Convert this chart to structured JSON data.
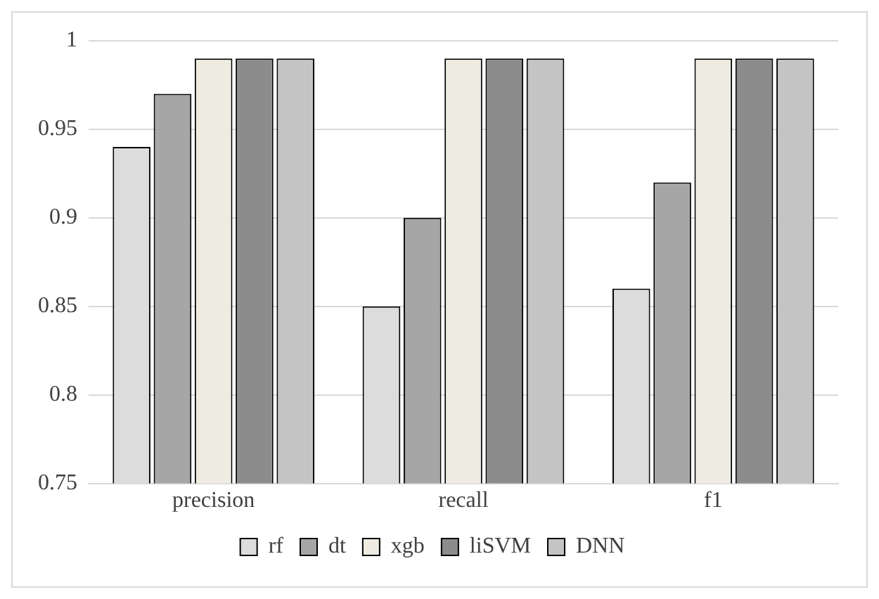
{
  "chart_data": {
    "type": "bar",
    "categories": [
      "precision",
      "recall",
      "f1"
    ],
    "series": [
      {
        "name": "rf",
        "color": "#dcdcdc",
        "values": [
          0.94,
          0.85,
          0.86
        ]
      },
      {
        "name": "dt",
        "color": "#a6a6a6",
        "values": [
          0.97,
          0.9,
          0.92
        ]
      },
      {
        "name": "xgb",
        "color": "#eeece1",
        "values": [
          0.99,
          0.99,
          0.99
        ]
      },
      {
        "name": "liSVM",
        "color": "#8c8c8c",
        "values": [
          0.99,
          0.99,
          0.99
        ]
      },
      {
        "name": "DNN",
        "color": "#c4c4c4",
        "values": [
          0.99,
          0.99,
          0.99
        ]
      }
    ],
    "ylim": [
      0.75,
      1
    ],
    "yticks": [
      0.75,
      0.8,
      0.85,
      0.9,
      0.95,
      1
    ],
    "grid": "y",
    "legend": "bottom"
  }
}
